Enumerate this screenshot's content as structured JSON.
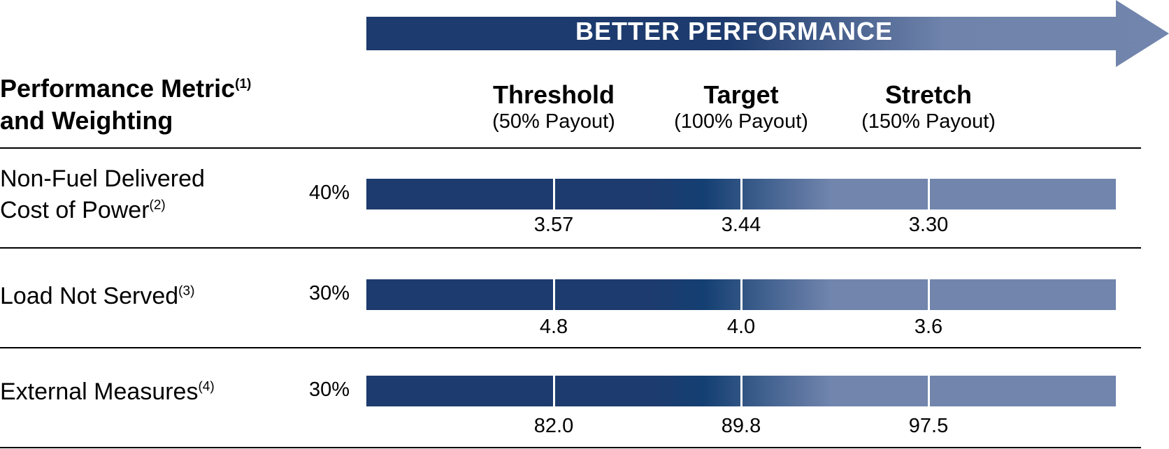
{
  "banner": {
    "label": "BETTER PERFORMANCE"
  },
  "header": {
    "metric_line1": "Performance Metric",
    "metric_line1_note": "(1)",
    "metric_line2": "and Weighting"
  },
  "levels": [
    {
      "name": "Threshold",
      "payout": "(50% Payout)"
    },
    {
      "name": "Target",
      "payout": "(100% Payout)"
    },
    {
      "name": "Stretch",
      "payout": "(150% Payout)"
    }
  ],
  "metrics": [
    {
      "label_line1": "Non-Fuel Delivered",
      "label_line2": "Cost of Power",
      "note": "(2)",
      "weight": "40%",
      "values": [
        "3.57",
        "3.44",
        "3.30"
      ]
    },
    {
      "label_line1": "Load Not Served",
      "note": "(3)",
      "weight": "30%",
      "values": [
        "4.8",
        "4.0",
        "3.6"
      ]
    },
    {
      "label_line1": "External Measures",
      "note": "(4)",
      "weight": "30%",
      "values": [
        "82.0",
        "89.8",
        "97.5"
      ]
    }
  ],
  "colors": {
    "dark_blue": "#1d3b6e",
    "light_blue": "#7185ad",
    "divider": "#ffffff"
  }
}
